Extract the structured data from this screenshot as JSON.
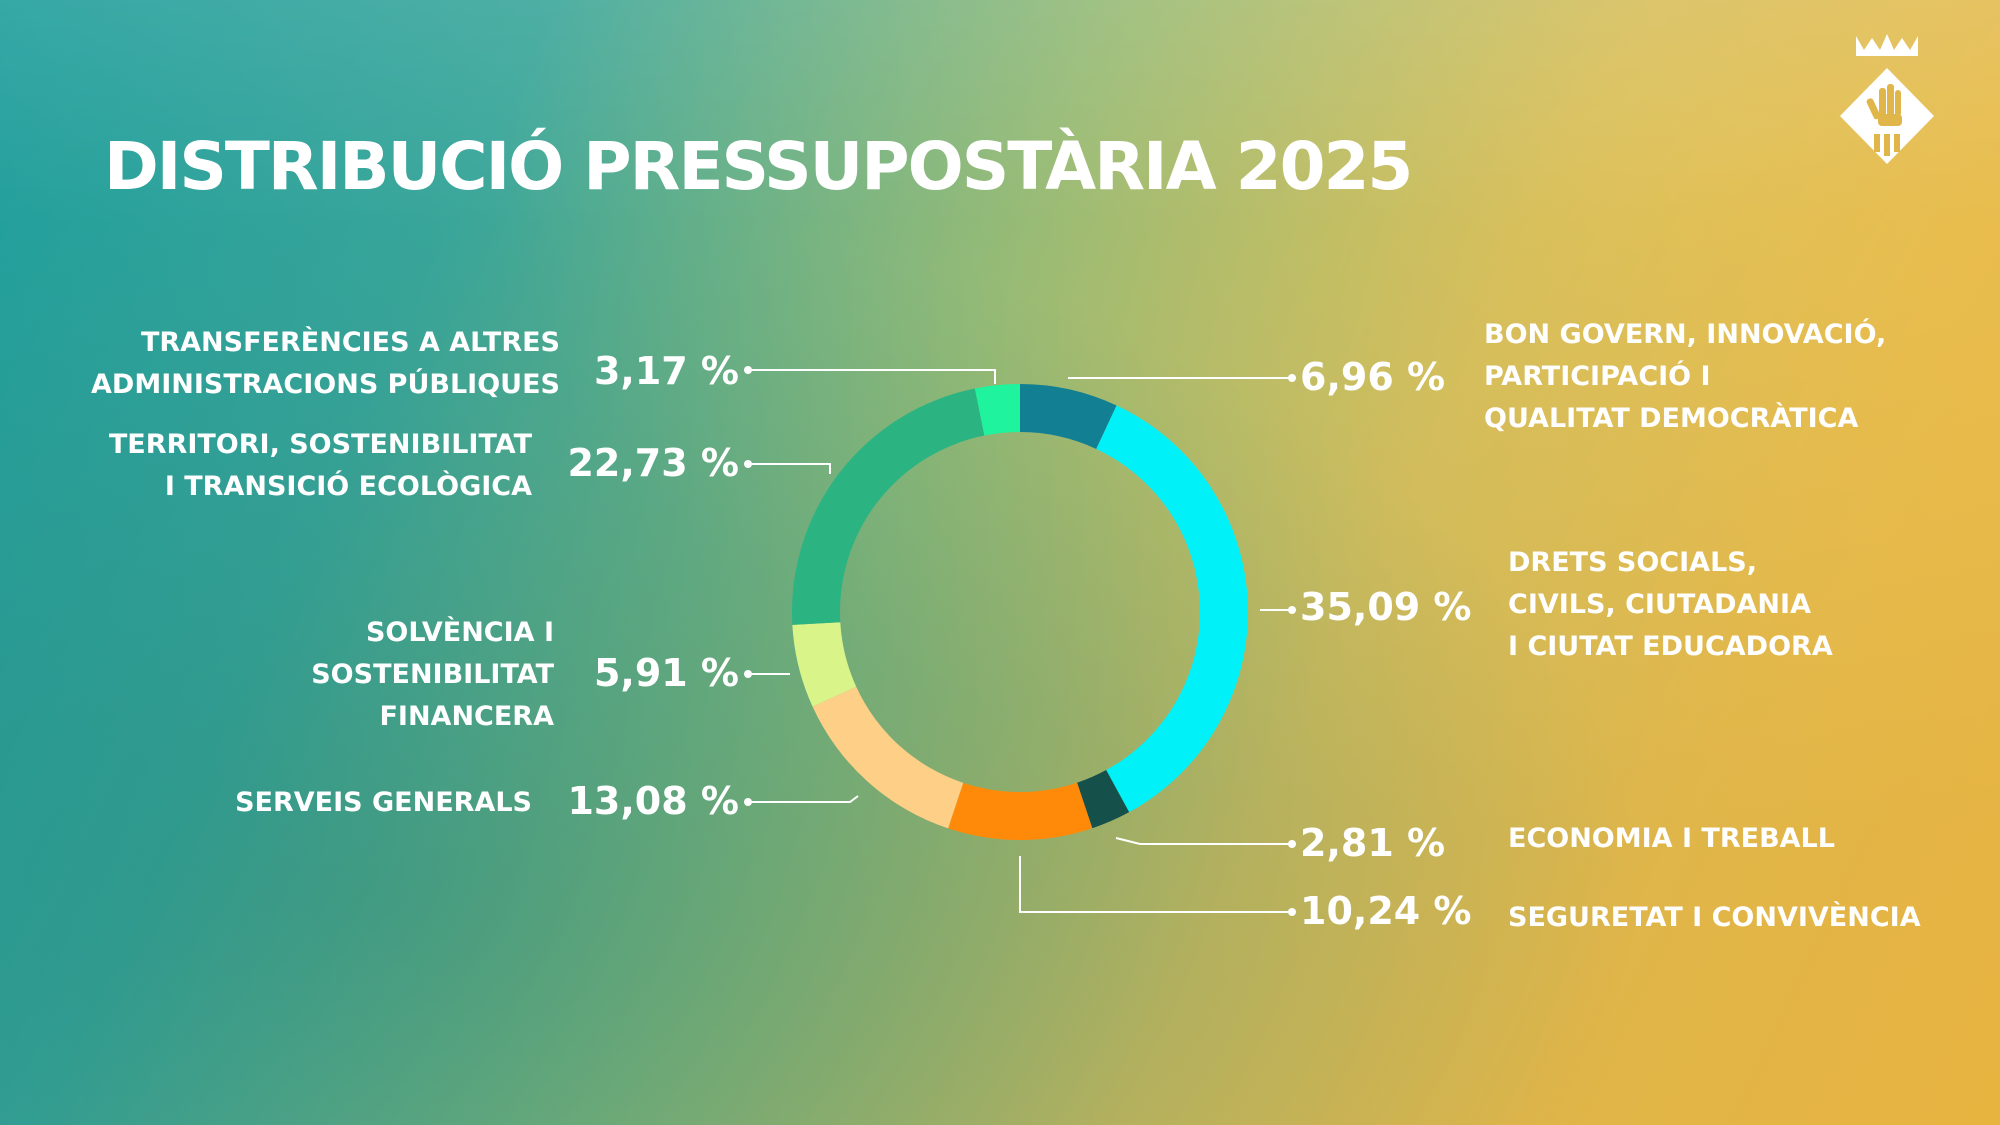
{
  "title": "DISTRIBUCIÓ PRESSUPOSTÀRIA 2025",
  "chart_data": {
    "type": "pie",
    "variant": "donut",
    "title": "DISTRIBUCIÓ PRESSUPOSTÀRIA 2025",
    "unit": "%",
    "slices": [
      {
        "label": "BON GOVERN, INNOVACIÓ, PARTICIPACIÓ I QUALITAT DEMOCRÀTICA",
        "label_lines": [
          "BON GOVERN, INNOVACIÓ,",
          "PARTICIPACIÓ I",
          "QUALITAT DEMOCRÀTICA"
        ],
        "value": 6.96,
        "value_text": "6,96 %",
        "color": "#127f93"
      },
      {
        "label": "DRETS SOCIALS, CIVILS, CIUTADANIA I CIUTAT EDUCADORA",
        "label_lines": [
          "DRETS SOCIALS,",
          "CIVILS, CIUTADANIA",
          "I CIUTAT EDUCADORA"
        ],
        "value": 35.09,
        "value_text": "35,09 %",
        "color": "#00f2f8"
      },
      {
        "label": "ECONOMIA I TREBALL",
        "label_lines": [
          "ECONOMIA I TREBALL"
        ],
        "value": 2.81,
        "value_text": "2,81 %",
        "color": "#16504b"
      },
      {
        "label": "SEGURETAT I CONVIVÈNCIA",
        "label_lines": [
          "SEGURETAT I CONVIVÈNCIA"
        ],
        "value": 10.24,
        "value_text": "10,24 %",
        "color": "#ff8a0a"
      },
      {
        "label": "SERVEIS GENERALS",
        "label_lines": [
          "SERVEIS GENERALS"
        ],
        "value": 13.08,
        "value_text": "13,08 %",
        "color": "#fecf86"
      },
      {
        "label": "SOLVÈNCIA I SOSTENIBILITAT FINANCERA",
        "label_lines": [
          "SOLVÈNCIA I",
          "SOSTENIBILITAT",
          "FINANCERA"
        ],
        "value": 5.91,
        "value_text": "5,91 %",
        "color": "#d9f58a"
      },
      {
        "label": "TERRITORI, SOSTENIBILITAT I TRANSICIÓ ECOLÒGICA",
        "label_lines": [
          "TERRITORI, SOSTENIBILITAT",
          "I TRANSICIÓ ECOLÒGICA"
        ],
        "value": 22.73,
        "value_text": "22,73 %",
        "color": "#2bb481"
      },
      {
        "label": "TRANSFERÈNCIES A ALTRES ADMINISTRACIONS PÚBLIQUES",
        "label_lines": [
          "TRANSFERÈNCIES A ALTRES",
          "ADMINISTRACIONS PÚBLIQUES"
        ],
        "value": 3.17,
        "value_text": "3,17 %",
        "color": "#1ff39d"
      }
    ]
  },
  "logo": {
    "icon": "municipal-coat-of-arms-icon"
  }
}
